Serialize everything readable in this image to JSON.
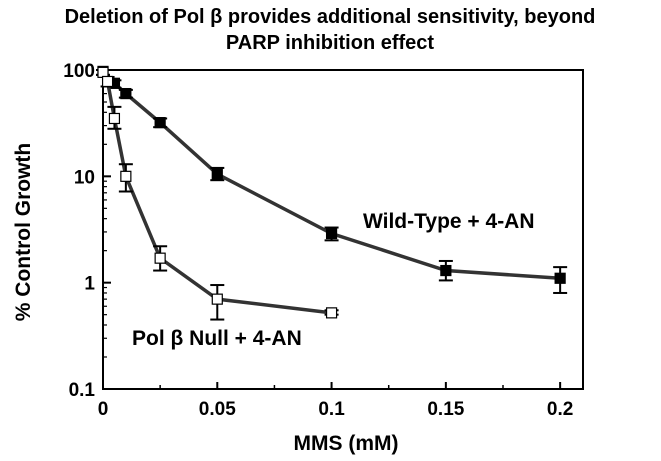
{
  "chart_data": {
    "type": "line",
    "title_line1": "Deletion of Pol β provides additional sensitivity, beyond",
    "title_line2": "PARP inhibition effect",
    "xlabel": "MMS (mM)",
    "ylabel": "% Control Growth",
    "xlim": [
      0,
      0.21
    ],
    "ylim": [
      0.1,
      100
    ],
    "y_scale": "log",
    "x_ticks": [
      0,
      0.05,
      0.1,
      0.15,
      0.2
    ],
    "x_tick_labels": [
      "0",
      "0.05",
      "0.1",
      "0.15",
      "0.2"
    ],
    "y_ticks": [
      0.1,
      1,
      10,
      100
    ],
    "y_tick_labels": [
      "0.1",
      "1",
      "10",
      "100"
    ],
    "grid": false,
    "series": [
      {
        "name": "Wild-Type + 4-AN",
        "marker": "filled-square",
        "color": "#000000",
        "line_color": "#333333",
        "x": [
          0,
          0.005,
          0.01,
          0.025,
          0.05,
          0.1,
          0.15,
          0.2
        ],
        "y": [
          97,
          75,
          60,
          32,
          10.5,
          2.9,
          1.3,
          1.1
        ],
        "err_low": [
          90,
          68,
          55,
          29,
          9.2,
          2.5,
          1.05,
          0.8
        ],
        "err_high": [
          100,
          80,
          65,
          35,
          12,
          3.3,
          1.6,
          1.4
        ]
      },
      {
        "name": "Pol β Null + 4-AN",
        "marker": "open-square",
        "color": "#000000",
        "line_color": "#333333",
        "x": [
          0,
          0.002,
          0.005,
          0.01,
          0.025,
          0.05,
          0.1
        ],
        "y": [
          95,
          78,
          35,
          10,
          1.7,
          0.7,
          0.52
        ],
        "err_low": [
          90,
          70,
          28,
          7.2,
          1.3,
          0.45,
          0.5
        ],
        "err_high": [
          100,
          86,
          45,
          13,
          2.2,
          0.95,
          0.55
        ]
      }
    ]
  }
}
